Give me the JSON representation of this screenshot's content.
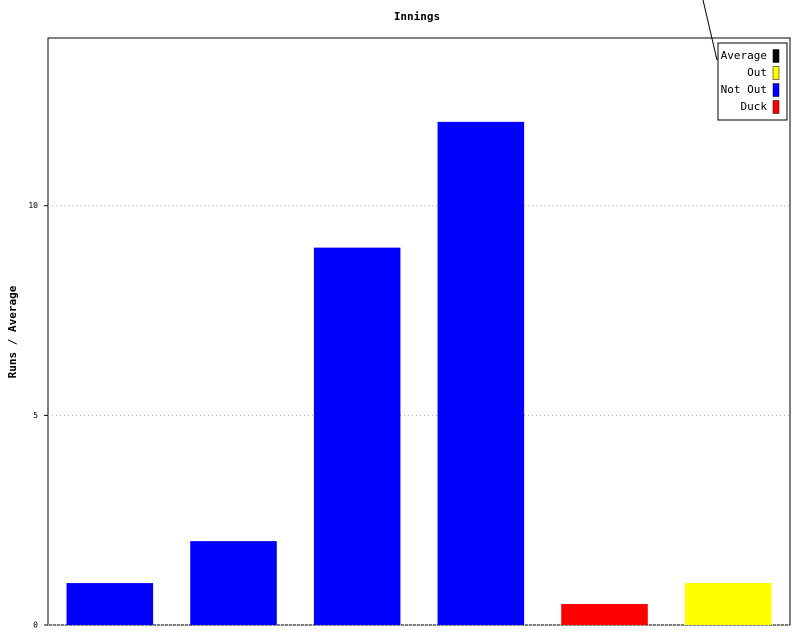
{
  "chart_data": {
    "type": "bar",
    "title": "Innings",
    "y_label": "Runs / Average",
    "categories": [
      null,
      null,
      null,
      null,
      null,
      null
    ],
    "series": [
      {
        "name": "Average",
        "color": "#000000",
        "values": [
          null,
          null,
          null,
          null,
          null,
          null
        ]
      },
      {
        "name": "Out",
        "color": "#ffff00",
        "values": [
          null,
          null,
          null,
          null,
          null,
          1
        ]
      },
      {
        "name": "Not Out",
        "color": "#0000ff",
        "values": [
          1,
          2,
          9,
          12,
          null,
          null
        ]
      },
      {
        "name": "Duck",
        "color": "#ff0000",
        "values": [
          null,
          null,
          null,
          null,
          0.5,
          null
        ]
      }
    ],
    "ylim": [
      0,
      14
    ],
    "yticks": [
      0,
      5,
      10
    ],
    "grid": true,
    "legend": "top-right"
  }
}
